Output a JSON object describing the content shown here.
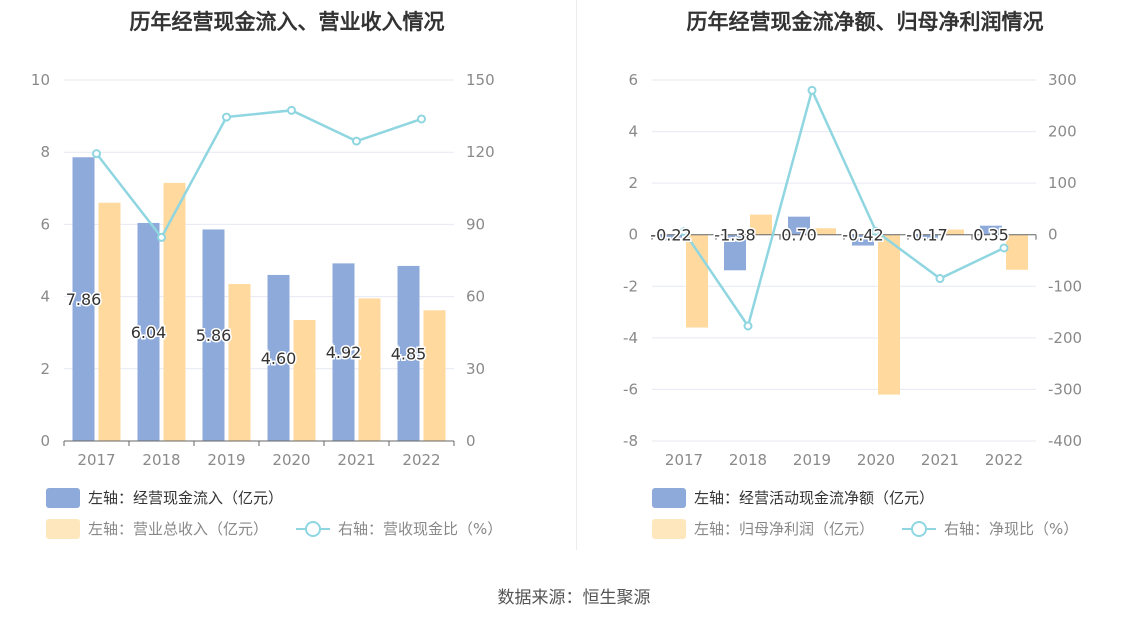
{
  "source": "数据来源：恒生聚源",
  "chart_data": [
    {
      "type": "bar",
      "title": "历年经营现金流入、营业收入情况",
      "categories": [
        "2017",
        "2018",
        "2019",
        "2020",
        "2021",
        "2022"
      ],
      "left_axis": {
        "ticks": [
          "0",
          "2",
          "4",
          "6",
          "8",
          "10"
        ],
        "range": [
          0,
          10
        ]
      },
      "right_axis": {
        "ticks": [
          "0",
          "30",
          "60",
          "90",
          "120",
          "150"
        ],
        "range": [
          0,
          150
        ]
      },
      "series": [
        {
          "name": "左轴：经营现金流入（亿元）",
          "kind": "bar",
          "axis": "left",
          "color": "#8eaadb",
          "values": [
            7.86,
            6.04,
            5.86,
            4.6,
            4.92,
            4.85
          ],
          "labels": [
            "7.86",
            "6.04",
            "5.86",
            "4.60",
            "4.92",
            "4.85"
          ]
        },
        {
          "name": "左轴：营业总收入（亿元）",
          "kind": "bar",
          "axis": "left",
          "color": "#ffd99e",
          "values": [
            6.6,
            7.15,
            4.35,
            3.35,
            3.95,
            3.62
          ]
        },
        {
          "name": "右轴：营收现金比（%）",
          "kind": "line",
          "axis": "right",
          "color": "#8fd6e1",
          "values": [
            119.4,
            84.6,
            134.6,
            137.4,
            124.6,
            133.8
          ]
        }
      ],
      "legend_rows": [
        [
          "左轴：经营现金流入（亿元）"
        ],
        [
          "左轴：营业总收入（亿元）",
          "右轴：营收现金比（%）"
        ]
      ]
    },
    {
      "type": "bar",
      "title": "历年经营现金流净额、归母净利润情况",
      "categories": [
        "2017",
        "2018",
        "2019",
        "2020",
        "2021",
        "2022"
      ],
      "left_axis": {
        "ticks": [
          "-8",
          "-6",
          "-4",
          "-2",
          "0",
          "2",
          "4",
          "6"
        ],
        "range": [
          -8,
          6
        ]
      },
      "right_axis": {
        "ticks": [
          "-400",
          "-300",
          "-200",
          "-100",
          "0",
          "100",
          "200",
          "300"
        ],
        "range": [
          -400,
          300
        ]
      },
      "series": [
        {
          "name": "左轴：经营活动现金流净额（亿元）",
          "kind": "bar",
          "axis": "left",
          "color": "#8eaadb",
          "values": [
            -0.22,
            -1.38,
            0.7,
            -0.42,
            -0.17,
            0.35
          ],
          "labels": [
            "-0.22",
            "-1.38",
            "0.70",
            "-0.42",
            "-0.17",
            "0.35"
          ]
        },
        {
          "name": "左轴：归母净利润（亿元）",
          "kind": "bar",
          "axis": "left",
          "color": "#ffd99e",
          "values": [
            -3.6,
            0.78,
            0.25,
            -6.2,
            0.2,
            -1.36
          ]
        },
        {
          "name": "右轴：净现比（%）",
          "kind": "line",
          "axis": "right",
          "color": "#8fd6e1",
          "values": [
            6.1,
            -177.0,
            280.0,
            6.8,
            -85.0,
            -25.7
          ]
        }
      ],
      "legend_rows": [
        [
          "左轴：经营活动现金流净额（亿元）"
        ],
        [
          "左轴：归母净利润（亿元）",
          "右轴：净现比（%）"
        ]
      ]
    }
  ]
}
